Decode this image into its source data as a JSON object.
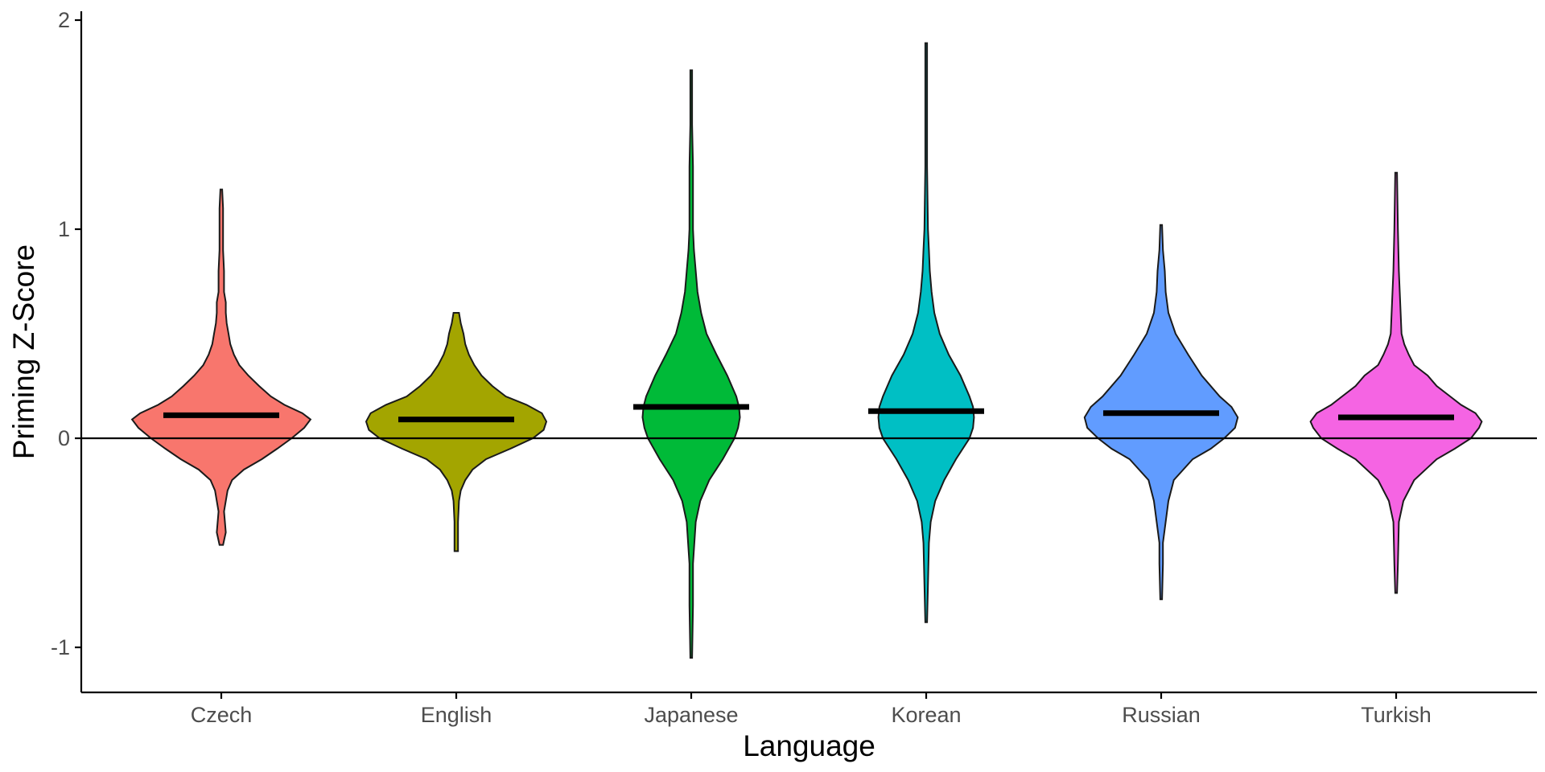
{
  "chart_data": {
    "type": "violin",
    "xlabel": "Language",
    "ylabel": "Priming Z-Score",
    "ylim": [
      -1.2,
      2.02
    ],
    "yticks": [
      -1,
      0,
      1,
      2
    ],
    "ytick_labels": [
      "-1",
      "0",
      "1",
      "2"
    ],
    "reference_line_y": 0,
    "grid": false,
    "legend": "none",
    "categories": [
      "Czech",
      "English",
      "Japanese",
      "Korean",
      "Russian",
      "Turkish"
    ],
    "series": [
      {
        "category": "Czech",
        "color": "#F8766D",
        "mean": 0.11,
        "min": -0.51,
        "max": 1.19,
        "density": [
          [
            -0.51,
            0.02
          ],
          [
            -0.45,
            0.05
          ],
          [
            -0.35,
            0.03
          ],
          [
            -0.25,
            0.07
          ],
          [
            -0.2,
            0.12
          ],
          [
            -0.15,
            0.25
          ],
          [
            -0.1,
            0.45
          ],
          [
            -0.05,
            0.62
          ],
          [
            0.0,
            0.78
          ],
          [
            0.05,
            0.92
          ],
          [
            0.09,
            0.99
          ],
          [
            0.12,
            0.9
          ],
          [
            0.16,
            0.7
          ],
          [
            0.2,
            0.55
          ],
          [
            0.25,
            0.42
          ],
          [
            0.3,
            0.3
          ],
          [
            0.35,
            0.2
          ],
          [
            0.4,
            0.14
          ],
          [
            0.45,
            0.1
          ],
          [
            0.5,
            0.08
          ],
          [
            0.55,
            0.06
          ],
          [
            0.6,
            0.05
          ],
          [
            0.65,
            0.05
          ],
          [
            0.7,
            0.03
          ],
          [
            0.8,
            0.03
          ],
          [
            0.9,
            0.02
          ],
          [
            1.0,
            0.02
          ],
          [
            1.1,
            0.02
          ],
          [
            1.19,
            0.01
          ]
        ]
      },
      {
        "category": "English",
        "color": "#A3A500",
        "mean": 0.09,
        "min": -0.54,
        "max": 0.6,
        "density": [
          [
            -0.54,
            0.02
          ],
          [
            -0.4,
            0.02
          ],
          [
            -0.3,
            0.03
          ],
          [
            -0.25,
            0.05
          ],
          [
            -0.2,
            0.1
          ],
          [
            -0.15,
            0.18
          ],
          [
            -0.1,
            0.33
          ],
          [
            -0.05,
            0.6
          ],
          [
            0.0,
            0.85
          ],
          [
            0.04,
            0.97
          ],
          [
            0.08,
            1.0
          ],
          [
            0.12,
            0.95
          ],
          [
            0.16,
            0.78
          ],
          [
            0.2,
            0.55
          ],
          [
            0.25,
            0.4
          ],
          [
            0.3,
            0.28
          ],
          [
            0.35,
            0.2
          ],
          [
            0.4,
            0.14
          ],
          [
            0.45,
            0.1
          ],
          [
            0.5,
            0.08
          ],
          [
            0.55,
            0.05
          ],
          [
            0.6,
            0.03
          ]
        ]
      },
      {
        "category": "Japanese",
        "color": "#00BA38",
        "mean": 0.15,
        "min": -1.05,
        "max": 1.76,
        "density": [
          [
            -1.05,
            0.01
          ],
          [
            -0.8,
            0.02
          ],
          [
            -0.6,
            0.02
          ],
          [
            -0.4,
            0.05
          ],
          [
            -0.3,
            0.1
          ],
          [
            -0.2,
            0.2
          ],
          [
            -0.1,
            0.35
          ],
          [
            0.0,
            0.48
          ],
          [
            0.05,
            0.52
          ],
          [
            0.1,
            0.54
          ],
          [
            0.15,
            0.53
          ],
          [
            0.2,
            0.5
          ],
          [
            0.3,
            0.4
          ],
          [
            0.4,
            0.28
          ],
          [
            0.5,
            0.17
          ],
          [
            0.6,
            0.11
          ],
          [
            0.7,
            0.07
          ],
          [
            0.8,
            0.05
          ],
          [
            0.9,
            0.03
          ],
          [
            1.0,
            0.02
          ],
          [
            1.3,
            0.02
          ],
          [
            1.5,
            0.01
          ],
          [
            1.76,
            0.01
          ]
        ]
      },
      {
        "category": "Korean",
        "color": "#00BFC4",
        "mean": 0.13,
        "min": -0.88,
        "max": 1.89,
        "density": [
          [
            -0.88,
            0.01
          ],
          [
            -0.7,
            0.02
          ],
          [
            -0.5,
            0.03
          ],
          [
            -0.4,
            0.05
          ],
          [
            -0.3,
            0.1
          ],
          [
            -0.2,
            0.2
          ],
          [
            -0.1,
            0.33
          ],
          [
            0.0,
            0.48
          ],
          [
            0.05,
            0.52
          ],
          [
            0.1,
            0.53
          ],
          [
            0.15,
            0.52
          ],
          [
            0.2,
            0.48
          ],
          [
            0.3,
            0.38
          ],
          [
            0.4,
            0.25
          ],
          [
            0.5,
            0.15
          ],
          [
            0.6,
            0.09
          ],
          [
            0.7,
            0.06
          ],
          [
            0.8,
            0.04
          ],
          [
            0.9,
            0.03
          ],
          [
            1.0,
            0.02
          ],
          [
            1.3,
            0.01
          ],
          [
            1.6,
            0.01
          ],
          [
            1.89,
            0.01
          ]
        ]
      },
      {
        "category": "Russian",
        "color": "#619CFF",
        "mean": 0.12,
        "min": -0.77,
        "max": 1.02,
        "density": [
          [
            -0.77,
            0.01
          ],
          [
            -0.6,
            0.02
          ],
          [
            -0.5,
            0.02
          ],
          [
            -0.4,
            0.05
          ],
          [
            -0.3,
            0.08
          ],
          [
            -0.2,
            0.14
          ],
          [
            -0.1,
            0.35
          ],
          [
            -0.05,
            0.55
          ],
          [
            0.0,
            0.7
          ],
          [
            0.05,
            0.82
          ],
          [
            0.1,
            0.85
          ],
          [
            0.15,
            0.78
          ],
          [
            0.2,
            0.65
          ],
          [
            0.3,
            0.45
          ],
          [
            0.4,
            0.3
          ],
          [
            0.5,
            0.16
          ],
          [
            0.6,
            0.08
          ],
          [
            0.7,
            0.05
          ],
          [
            0.8,
            0.04
          ],
          [
            0.9,
            0.02
          ],
          [
            1.02,
            0.01
          ]
        ]
      },
      {
        "category": "Turkish",
        "color": "#F564E3",
        "mean": 0.1,
        "min": -0.74,
        "max": 1.27,
        "density": [
          [
            -0.74,
            0.01
          ],
          [
            -0.6,
            0.02
          ],
          [
            -0.4,
            0.03
          ],
          [
            -0.3,
            0.08
          ],
          [
            -0.2,
            0.2
          ],
          [
            -0.1,
            0.45
          ],
          [
            -0.05,
            0.65
          ],
          [
            0.0,
            0.83
          ],
          [
            0.05,
            0.92
          ],
          [
            0.08,
            0.95
          ],
          [
            0.12,
            0.88
          ],
          [
            0.16,
            0.72
          ],
          [
            0.2,
            0.6
          ],
          [
            0.25,
            0.45
          ],
          [
            0.3,
            0.35
          ],
          [
            0.35,
            0.2
          ],
          [
            0.4,
            0.14
          ],
          [
            0.45,
            0.09
          ],
          [
            0.5,
            0.06
          ],
          [
            0.6,
            0.05
          ],
          [
            0.7,
            0.04
          ],
          [
            0.8,
            0.03
          ],
          [
            1.0,
            0.02
          ],
          [
            1.27,
            0.01
          ]
        ]
      }
    ]
  }
}
